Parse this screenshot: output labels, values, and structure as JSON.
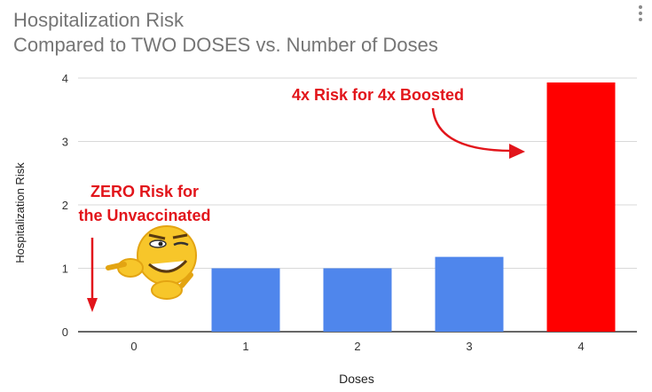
{
  "header": {
    "title": "Hospitalization Risk",
    "subtitle": "Compared to TWO DOSES vs. Number of Doses"
  },
  "chart_data": {
    "type": "bar",
    "title": "Hospitalization Risk",
    "subtitle": "Compared to TWO DOSES vs. Number of Doses",
    "xlabel": "Doses",
    "ylabel": "Hospitalization Risk",
    "categories": [
      "0",
      "1",
      "2",
      "3",
      "4"
    ],
    "values": [
      0,
      1.0,
      1.0,
      1.18,
      3.93
    ],
    "bar_colors": [
      "#4f86ec",
      "#4f86ec",
      "#4f86ec",
      "#4f86ec",
      "#ff0000"
    ],
    "ylim": [
      0,
      4
    ],
    "yticks": [
      "0",
      "1",
      "2",
      "3",
      "4"
    ],
    "grid": true,
    "annotations": {
      "left_line1": "ZERO Risk for",
      "left_line2": "the Unvaccinated",
      "right": "4x Risk for 4x Boosted"
    }
  },
  "colors": {
    "bar": "#4f86ec",
    "highlight_bar": "#ff0000",
    "annotation": "#e2151b",
    "title": "#757575"
  },
  "icons": [
    "winking-emoji-icon",
    "more-vert-icon"
  ]
}
